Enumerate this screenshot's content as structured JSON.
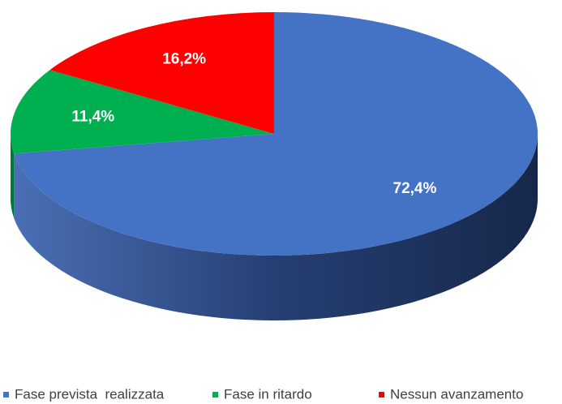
{
  "chart_data": {
    "type": "pie",
    "categories": [
      "Fase prevista  realizzata",
      "Fase in ritardo",
      "Nessun avanzamento"
    ],
    "values": [
      72.4,
      11.4,
      16.2
    ],
    "value_labels": [
      "72,4%",
      "11,4%",
      "16,2%"
    ],
    "colors": [
      "#4472c4",
      "#00b050",
      "#ff0000"
    ],
    "side_colors": [
      "#2c4a85",
      "#007a38",
      "#b30000"
    ],
    "legend": "bottom"
  }
}
